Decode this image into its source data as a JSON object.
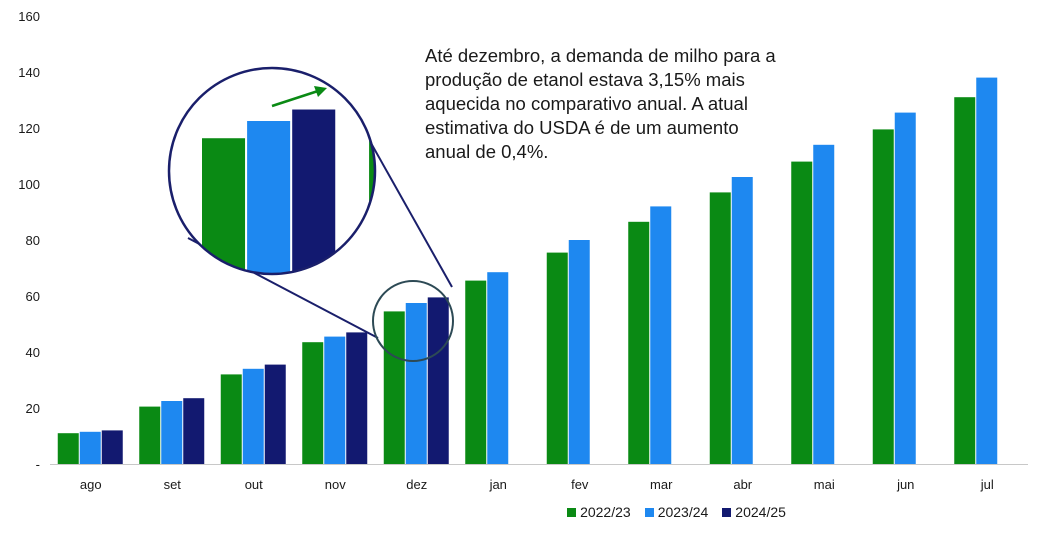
{
  "chart_data": {
    "type": "bar",
    "categories": [
      "ago",
      "set",
      "out",
      "nov",
      "dez",
      "jan",
      "fev",
      "mar",
      "abr",
      "mai",
      "jun",
      "jul"
    ],
    "series": [
      {
        "name": "2022/23",
        "color": "#0a8a14",
        "values": [
          11.0,
          20.5,
          32.0,
          43.5,
          54.5,
          65.5,
          75.5,
          86.5,
          97.0,
          108.0,
          119.5,
          131.0
        ]
      },
      {
        "name": "2023/24",
        "color": "#1e88f0",
        "values": [
          11.5,
          22.5,
          34.0,
          45.5,
          57.5,
          68.5,
          80.0,
          92.0,
          102.5,
          114.0,
          125.5,
          138.0
        ]
      },
      {
        "name": "2024/25",
        "color": "#121970",
        "values": [
          12.0,
          23.5,
          35.5,
          47.0,
          59.5,
          null,
          null,
          null,
          null,
          null,
          null,
          null
        ]
      }
    ],
    "yticks": [
      "-",
      "20",
      "40",
      "60",
      "80",
      "100",
      "120",
      "140",
      "160"
    ],
    "ylim": [
      0,
      160
    ],
    "grid": false,
    "legend_position": "bottom",
    "annotation": "Até dezembro, a demanda de milho para a produção de etanol estava 3,15% mais aquecida no comparativo anual. A atual estimativa do USDA é de um aumento anual de 0,4%.",
    "zoom_callout": {
      "category": "dez",
      "border_color": "#1a1f6b",
      "arrow_color": "#0a8a14"
    }
  },
  "annotation_lines": [
    "Até dezembro, a demanda de milho para a",
    "produção de etanol estava 3,15% mais",
    "aquecida no comparativo anual. A atual",
    "estimativa do USDA é de um aumento",
    "anual de 0,4%."
  ]
}
